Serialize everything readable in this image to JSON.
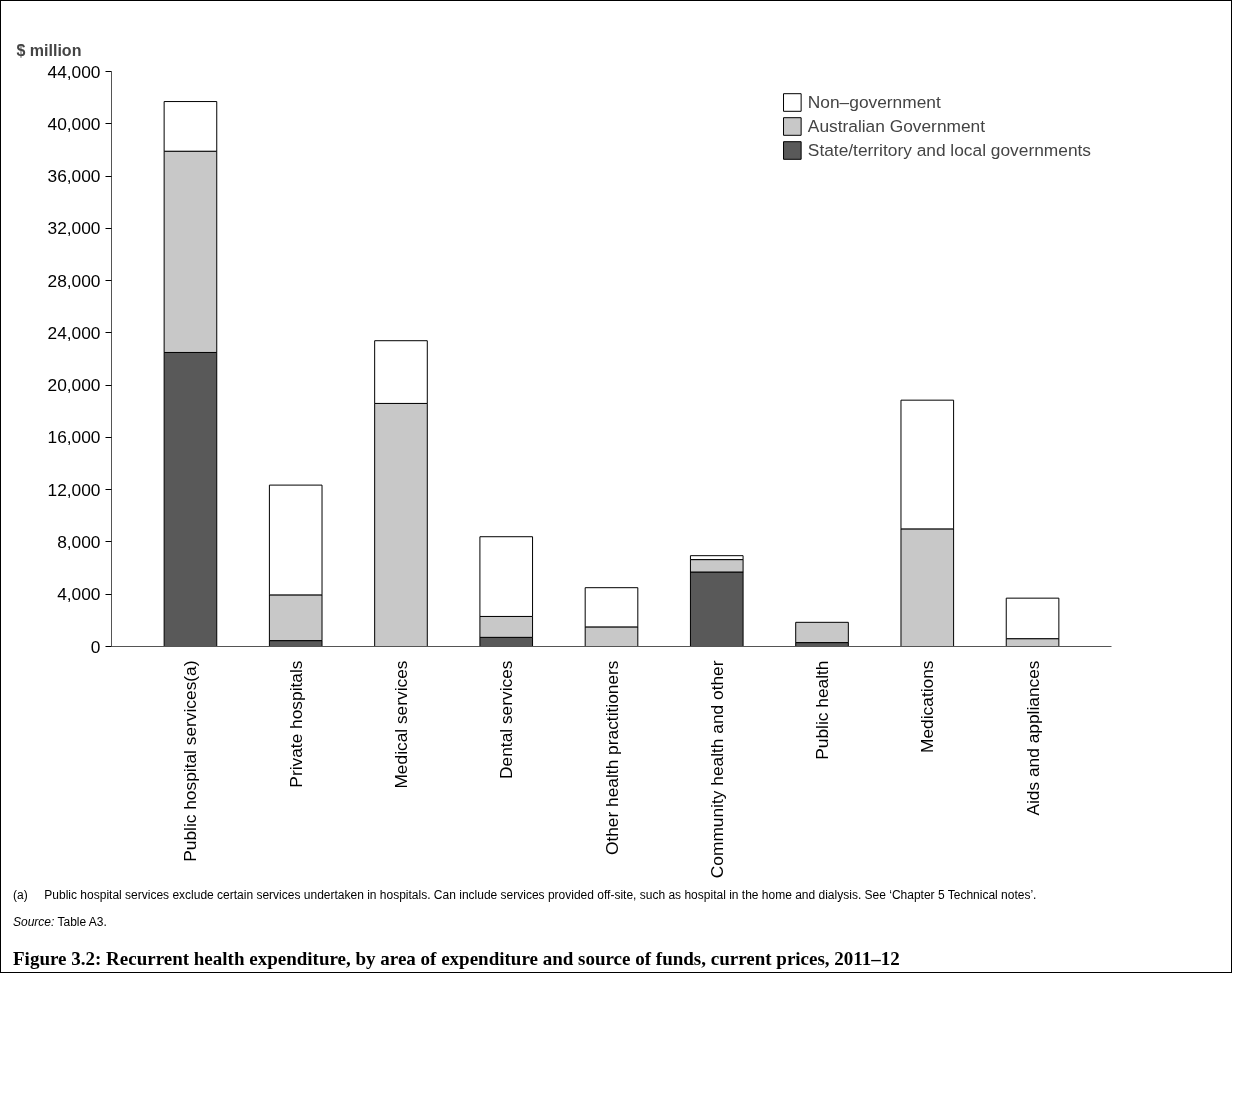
{
  "chart_data": {
    "type": "bar",
    "stacked": true,
    "title": "Figure 3.2: Recurrent health expenditure, by area of expenditure and source of funds, current prices, 2011–12",
    "ylabel": "$ million",
    "categories": [
      "Public hospital services(a)",
      "Private hospitals",
      "Medical services",
      "Dental services",
      "Other health practitioners",
      "Community health and other",
      "Public health",
      "Medications",
      "Aids and appliances"
    ],
    "series": [
      {
        "name": "State/territory and local governments",
        "color": "#595959",
        "values": [
          22500,
          450,
          0,
          700,
          0,
          5700,
          300,
          0,
          0
        ]
      },
      {
        "name": "Australian Government",
        "color": "#c8c8c8",
        "values": [
          15400,
          3500,
          18600,
          1600,
          1500,
          950,
          1550,
          9000,
          600
        ]
      },
      {
        "name": "Non–government",
        "color": "#ffffff",
        "values": [
          3800,
          8400,
          4800,
          6100,
          3000,
          300,
          0,
          9850,
          3100
        ]
      }
    ],
    "ylim": [
      0,
      44000
    ],
    "yticks": [
      {
        "value": 0,
        "label": "0"
      },
      {
        "value": 4000,
        "label": "4,000"
      },
      {
        "value": 8000,
        "label": "8,000"
      },
      {
        "value": 12000,
        "label": "12,000"
      },
      {
        "value": 16000,
        "label": "16,000"
      },
      {
        "value": 20000,
        "label": "20,000"
      },
      {
        "value": 24000,
        "label": "24,000"
      },
      {
        "value": 28000,
        "label": "28,000"
      },
      {
        "value": 32000,
        "label": "32,000"
      },
      {
        "value": 36000,
        "label": "36,000"
      },
      {
        "value": 40000,
        "label": "40,000"
      },
      {
        "value": 44000,
        "label": "44,000"
      }
    ],
    "grid": false,
    "legend": "top right",
    "annotations": [
      "(a)     Public hospital services exclude certain services undertaken in hospitals. Can include services provided off-site, such as hospital in the home and dialysis. See ‘Chapter 5 Technical notes’.",
      "Source: Table A3."
    ]
  }
}
